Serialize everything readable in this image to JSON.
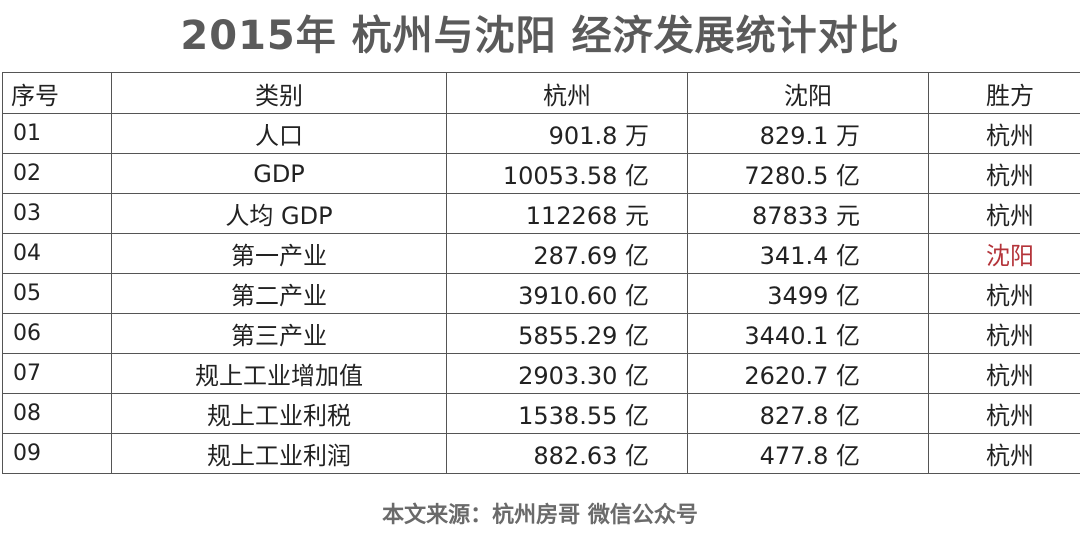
{
  "title": "2015年 杭州与沈阳 经济发展统计对比",
  "table": {
    "headers": [
      "序号",
      "类别",
      "杭州",
      "沈阳",
      "胜方"
    ],
    "rows": [
      {
        "idx": "01",
        "category": "人口",
        "hangzhou": "901.8 万",
        "shenyang": "829.1 万",
        "winner": "杭州"
      },
      {
        "idx": "02",
        "category": "GDP",
        "hangzhou": "10053.58 亿",
        "shenyang": "7280.5 亿",
        "winner": "杭州"
      },
      {
        "idx": "03",
        "category": "人均 GDP",
        "hangzhou": "112268 元",
        "shenyang": "87833  元",
        "winner": "杭州"
      },
      {
        "idx": "04",
        "category": "第一产业",
        "hangzhou": "287.69 亿",
        "shenyang": "341.4 亿",
        "winner": "沈阳"
      },
      {
        "idx": "05",
        "category": "第二产业",
        "hangzhou": "3910.60 亿",
        "shenyang": "3499  亿",
        "winner": "杭州"
      },
      {
        "idx": "06",
        "category": "第三产业",
        "hangzhou": "5855.29 亿",
        "shenyang": "3440.1 亿",
        "winner": "杭州"
      },
      {
        "idx": "07",
        "category": "规上工业增加值",
        "hangzhou": "2903.30 亿",
        "shenyang": "2620.7 亿",
        "winner": "杭州"
      },
      {
        "idx": "08",
        "category": "规上工业利税",
        "hangzhou": "1538.55 亿",
        "shenyang": "827.8 亿",
        "winner": "杭州"
      },
      {
        "idx": "09",
        "category": "规上工业利润",
        "hangzhou": "882.63 亿",
        "shenyang": "477.8 亿",
        "winner": "杭州"
      }
    ]
  },
  "source": "本文来源：杭州房哥 微信公众号",
  "colors": {
    "winner_highlight": "#b4343a",
    "title": "#5a5a5a"
  }
}
